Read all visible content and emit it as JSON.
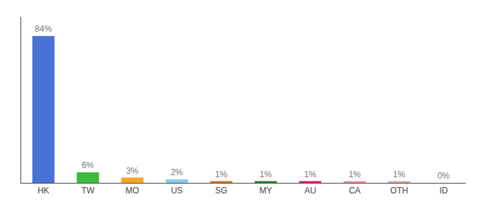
{
  "chart_data": {
    "type": "bar",
    "categories": [
      "HK",
      "TW",
      "MO",
      "US",
      "SG",
      "MY",
      "AU",
      "CA",
      "OTH",
      "ID"
    ],
    "values": [
      84,
      6,
      3,
      2,
      1,
      1,
      1,
      1,
      1,
      0
    ],
    "value_labels": [
      "84%",
      "6%",
      "3%",
      "2%",
      "1%",
      "1%",
      "1%",
      "1%",
      "1%",
      "0%"
    ],
    "colors": [
      "#4a72d4",
      "#3dba3d",
      "#f5a623",
      "#87ceeb",
      "#d4721a",
      "#2a7a2a",
      "#e0187a",
      "#f090a0",
      "#e8a898",
      "#cccccc"
    ],
    "ylim": [
      0,
      95
    ],
    "data_labels": true,
    "tick_labels": "x",
    "grid": false
  }
}
